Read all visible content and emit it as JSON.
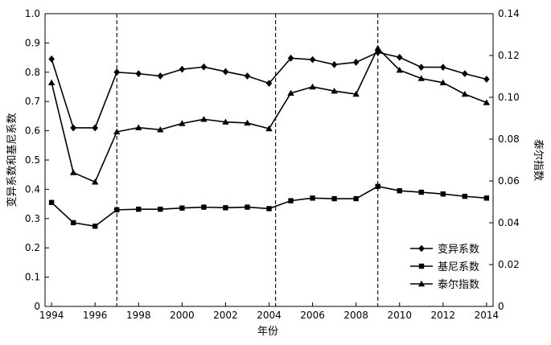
{
  "chart_data": {
    "type": "line",
    "xlabel": "年份",
    "ylabel_left": "变异系数和基尼系数",
    "ylabel_right": "泰尔指数",
    "x": [
      1994,
      1995,
      1996,
      1997,
      1998,
      1999,
      2000,
      2001,
      2002,
      2003,
      2004,
      2005,
      2006,
      2007,
      2008,
      2009,
      2010,
      2011,
      2012,
      2013,
      2014
    ],
    "xlim": [
      1993.7,
      2014.3
    ],
    "x_ticks": [
      1994,
      1996,
      1998,
      2000,
      2002,
      2004,
      2006,
      2008,
      2010,
      2012,
      2014
    ],
    "ylim_left": [
      0,
      1.0
    ],
    "y_ticks_left": [
      "0",
      "0.1",
      "0.2",
      "0.3",
      "0.4",
      "0.5",
      "0.6",
      "0.7",
      "0.8",
      "0.9",
      "1.0"
    ],
    "ylim_right": [
      0,
      0.14
    ],
    "y_ticks_right": [
      "0",
      "0.02",
      "0.04",
      "0.06",
      "0.08",
      "0.10",
      "0.12",
      "0.14"
    ],
    "vlines": [
      1997,
      2004.3,
      2009
    ],
    "series": [
      {
        "name": "变异系数",
        "marker": "diamond",
        "axis": "left",
        "values": [
          0.845,
          0.61,
          0.61,
          0.8,
          0.795,
          0.787,
          0.81,
          0.818,
          0.802,
          0.787,
          0.762,
          0.848,
          0.843,
          0.826,
          0.834,
          0.868,
          0.851,
          0.817,
          0.817,
          0.795,
          0.776
        ]
      },
      {
        "name": "基尼系数",
        "marker": "square",
        "axis": "left",
        "values": [
          0.355,
          0.286,
          0.274,
          0.33,
          0.332,
          0.332,
          0.336,
          0.339,
          0.337,
          0.339,
          0.334,
          0.361,
          0.37,
          0.368,
          0.368,
          0.41,
          0.395,
          0.39,
          0.384,
          0.376,
          0.37
        ]
      },
      {
        "name": "泰尔指数",
        "marker": "triangle",
        "axis": "right",
        "values": [
          0.107,
          0.064,
          0.0595,
          0.0835,
          0.0855,
          0.0845,
          0.0875,
          0.0895,
          0.0882,
          0.0877,
          0.085,
          0.102,
          0.105,
          0.103,
          0.1015,
          0.1235,
          0.113,
          0.109,
          0.107,
          0.1015,
          0.0975
        ]
      }
    ],
    "legend_position": "bottom-right"
  }
}
